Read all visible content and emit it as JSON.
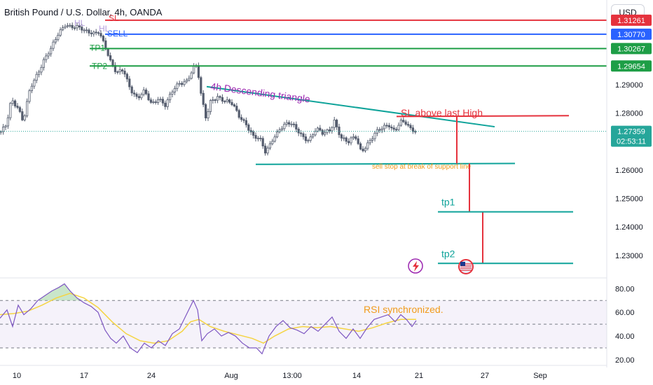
{
  "header": {
    "symbol_title": "British Pound / U.S. Dollar, 4h, OANDA",
    "currency_button": "USD"
  },
  "colors": {
    "up": "#26a69a",
    "down": "#ef5350",
    "candle": "#555d6e",
    "sl": "#e5323d",
    "sell": "#2962ff",
    "tp": "#1e9e46",
    "pattern": "#0fa39a",
    "rsi": "#7e57c2",
    "rsi_ma": "#f5d442",
    "annotation_orange": "#f19a1a",
    "annotation_purple": "#9c27b0"
  },
  "chart_data": [
    {
      "type": "candlestick",
      "title": "British Pound / U.S. Dollar, 4h, OANDA",
      "ylim": [
        1.2226,
        1.3148
      ],
      "y_ticks": [
        "1.23000",
        "1.24000",
        "1.25000",
        "1.26000",
        "1.28000",
        "1.29000"
      ],
      "x_ticks": [
        "10",
        "17",
        "24",
        "Aug",
        "13:00",
        "14",
        "21",
        "27",
        "Sep"
      ],
      "grid": false,
      "price_path": [
        [
          0,
          1.2735
        ],
        [
          8,
          1.277
        ],
        [
          15,
          1.2855
        ],
        [
          24,
          1.2815
        ],
        [
          32,
          1.276
        ],
        [
          42,
          1.289
        ],
        [
          52,
          1.2945
        ],
        [
          62,
          1.299
        ],
        [
          72,
          1.302
        ],
        [
          82,
          1.3075
        ],
        [
          92,
          1.3118
        ],
        [
          100,
          1.311
        ],
        [
          110,
          1.3098
        ],
        [
          120,
          1.308
        ],
        [
          132,
          1.3085
        ],
        [
          140,
          1.3095
        ],
        [
          148,
          1.304
        ],
        [
          156,
          1.2975
        ],
        [
          165,
          1.2935
        ],
        [
          175,
          1.296
        ],
        [
          185,
          1.289
        ],
        [
          195,
          1.2845
        ],
        [
          205,
          1.287
        ],
        [
          215,
          1.2835
        ],
        [
          225,
          1.286
        ],
        [
          235,
          1.2825
        ],
        [
          245,
          1.287
        ],
        [
          255,
          1.2905
        ],
        [
          265,
          1.292
        ],
        [
          275,
          1.296
        ],
        [
          280,
          1.2965
        ],
        [
          286,
          1.285
        ],
        [
          293,
          1.2775
        ],
        [
          300,
          1.285
        ],
        [
          310,
          1.2865
        ],
        [
          320,
          1.284
        ],
        [
          330,
          1.2825
        ],
        [
          340,
          1.279
        ],
        [
          350,
          1.277
        ],
        [
          360,
          1.272
        ],
        [
          370,
          1.27
        ],
        [
          378,
          1.2655
        ],
        [
          388,
          1.2715
        ],
        [
          398,
          1.275
        ],
        [
          410,
          1.276
        ],
        [
          420,
          1.2745
        ],
        [
          430,
          1.2725
        ],
        [
          440,
          1.271
        ],
        [
          450,
          1.274
        ],
        [
          460,
          1.272
        ],
        [
          470,
          1.2745
        ],
        [
          476,
          1.278
        ],
        [
          486,
          1.2715
        ],
        [
          496,
          1.269
        ],
        [
          506,
          1.2715
        ],
        [
          514,
          1.267
        ],
        [
          524,
          1.27
        ],
        [
          534,
          1.2725
        ],
        [
          544,
          1.274
        ],
        [
          554,
          1.276
        ],
        [
          562,
          1.2745
        ],
        [
          570,
          1.2775
        ],
        [
          578,
          1.276
        ],
        [
          586,
          1.273
        ],
        [
          593,
          1.2736
        ]
      ],
      "last_price": "1.27359",
      "countdown": "02:53:11",
      "levels": [
        {
          "name": "SL",
          "value": 1.31261,
          "label": "1.31261",
          "color": "#e5323d",
          "x_from": 150
        },
        {
          "name": "SELL",
          "value": 1.3077,
          "label": "1.30770",
          "color": "#2962ff",
          "x_from": 150
        },
        {
          "name": "TP1",
          "value": 1.30267,
          "label": "1.30267",
          "color": "#1e9e46",
          "x_from": 128
        },
        {
          "name": "TP2",
          "value": 1.29654,
          "label": "1.29654",
          "color": "#1e9e46",
          "x_from": 128
        }
      ],
      "level_tags": [
        "SL",
        "SELL",
        "TP1",
        "TP2"
      ],
      "hl_tags": [
        "HL",
        "HL"
      ],
      "pattern": {
        "upper": [
          [
            295,
            1.2893
          ],
          [
            706,
            1.2752
          ]
        ],
        "lower": [
          [
            365,
            1.262
          ],
          [
            735,
            1.2623
          ]
        ],
        "label": "4h Descending triangle"
      },
      "sl_line": {
        "points": [
          [
            566,
            1.2788
          ],
          [
            812,
            1.2791
          ]
        ],
        "label": "SL above last High"
      },
      "support_note": "sell stop at break of support line",
      "targets": [
        {
          "label": "tp1",
          "value": 1.2453,
          "x": [
            625,
            818
          ]
        },
        {
          "label": "tp2",
          "value": 1.2272,
          "x": [
            625,
            818
          ]
        }
      ],
      "projections": [
        {
          "x": 652,
          "from": 1.279,
          "to": 1.2623,
          "color": "#e5323d"
        },
        {
          "x": 670,
          "from": 1.2623,
          "to": 1.2453,
          "color": "#e5323d"
        },
        {
          "x": 689,
          "from": 1.2453,
          "to": 1.2272,
          "color": "#e5323d"
        }
      ]
    },
    {
      "type": "line",
      "title": "",
      "ylim": [
        17,
        89
      ],
      "y_ticks": [
        "80.00",
        "60.00",
        "40.00",
        "20.00"
      ],
      "bands": [
        30,
        50,
        70
      ],
      "series": [
        {
          "role": "rsi",
          "values": [
            [
              0,
              55
            ],
            [
              10,
              62
            ],
            [
              18,
              48
            ],
            [
              26,
              66
            ],
            [
              34,
              58
            ],
            [
              44,
              63
            ],
            [
              54,
              70
            ],
            [
              64,
              74
            ],
            [
              74,
              78
            ],
            [
              84,
              81
            ],
            [
              92,
              84
            ],
            [
              100,
              78
            ],
            [
              110,
              72
            ],
            [
              120,
              68
            ],
            [
              130,
              65
            ],
            [
              140,
              60
            ],
            [
              150,
              45
            ],
            [
              158,
              38
            ],
            [
              166,
              34
            ],
            [
              176,
              40
            ],
            [
              186,
              30
            ],
            [
              196,
              26
            ],
            [
              206,
              34
            ],
            [
              216,
              30
            ],
            [
              226,
              36
            ],
            [
              236,
              32
            ],
            [
              246,
              42
            ],
            [
              256,
              46
            ],
            [
              266,
              58
            ],
            [
              276,
              70
            ],
            [
              282,
              62
            ],
            [
              288,
              36
            ],
            [
              296,
              42
            ],
            [
              306,
              46
            ],
            [
              316,
              40
            ],
            [
              326,
              43
            ],
            [
              336,
              40
            ],
            [
              346,
              34
            ],
            [
              356,
              30
            ],
            [
              366,
              30
            ],
            [
              374,
              25
            ],
            [
              384,
              40
            ],
            [
              394,
              48
            ],
            [
              404,
              53
            ],
            [
              414,
              47
            ],
            [
              424,
              45
            ],
            [
              434,
              42
            ],
            [
              444,
              48
            ],
            [
              454,
              44
            ],
            [
              464,
              50
            ],
            [
              474,
              56
            ],
            [
              484,
              44
            ],
            [
              494,
              38
            ],
            [
              504,
              46
            ],
            [
              514,
              38
            ],
            [
              524,
              47
            ],
            [
              534,
              54
            ],
            [
              544,
              56
            ],
            [
              554,
              58
            ],
            [
              564,
              52
            ],
            [
              572,
              58
            ],
            [
              580,
              54
            ],
            [
              588,
              48
            ],
            [
              594,
              53
            ]
          ]
        },
        {
          "role": "rsi_ma",
          "values": [
            [
              0,
              58
            ],
            [
              20,
              59
            ],
            [
              40,
              61
            ],
            [
              60,
              66
            ],
            [
              80,
              72
            ],
            [
              100,
              76
            ],
            [
              120,
              72
            ],
            [
              140,
              64
            ],
            [
              160,
              52
            ],
            [
              180,
              42
            ],
            [
              200,
              36
            ],
            [
              220,
              34
            ],
            [
              240,
              36
            ],
            [
              260,
              44
            ],
            [
              272,
              52
            ],
            [
              284,
              54
            ],
            [
              300,
              48
            ],
            [
              320,
              44
            ],
            [
              340,
              41
            ],
            [
              360,
              38
            ],
            [
              376,
              34
            ],
            [
              392,
              40
            ],
            [
              412,
              46
            ],
            [
              432,
              48
            ],
            [
              452,
              47
            ],
            [
              472,
              48
            ],
            [
              492,
              46
            ],
            [
              512,
              44
            ],
            [
              532,
              47
            ],
            [
              552,
              51
            ],
            [
              572,
              54
            ],
            [
              594,
              54
            ]
          ]
        }
      ],
      "annotation": "RSI synchronized."
    }
  ]
}
